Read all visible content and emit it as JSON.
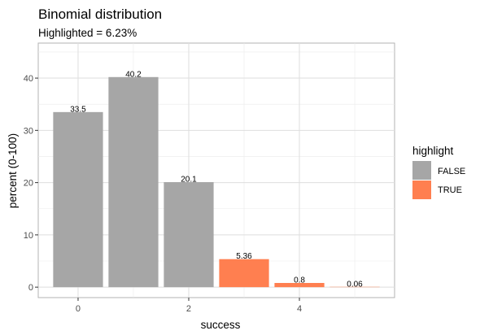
{
  "chart_data": {
    "type": "bar",
    "title": "Binomial distribution",
    "subtitle": "Highlighted = 6.23%",
    "xlabel": "success",
    "ylabel": "percent (0-100)",
    "x": [
      0,
      1,
      2,
      3,
      4,
      5
    ],
    "values": [
      33.5,
      40.2,
      20.1,
      5.36,
      0.8,
      0.06
    ],
    "labels": [
      "33.5",
      "40.2",
      "20.1",
      "5.36",
      "0.8",
      "0.06"
    ],
    "highlight": [
      "FALSE",
      "FALSE",
      "FALSE",
      "TRUE",
      "TRUE",
      "TRUE"
    ],
    "xlim": [
      -0.72,
      5.72
    ],
    "ylim": [
      -2.0,
      46.7
    ],
    "x_ticks": [
      0,
      2,
      4
    ],
    "y_ticks": [
      0,
      10,
      20,
      30,
      40
    ],
    "grid": true,
    "legend": {
      "title": "highlight",
      "position": "right",
      "entries": [
        {
          "label": "FALSE",
          "color": "#a6a6a6"
        },
        {
          "label": "TRUE",
          "color": "#ff7f50"
        }
      ]
    },
    "colors": {
      "FALSE": "#a6a6a6",
      "TRUE": "#ff7f50"
    }
  }
}
